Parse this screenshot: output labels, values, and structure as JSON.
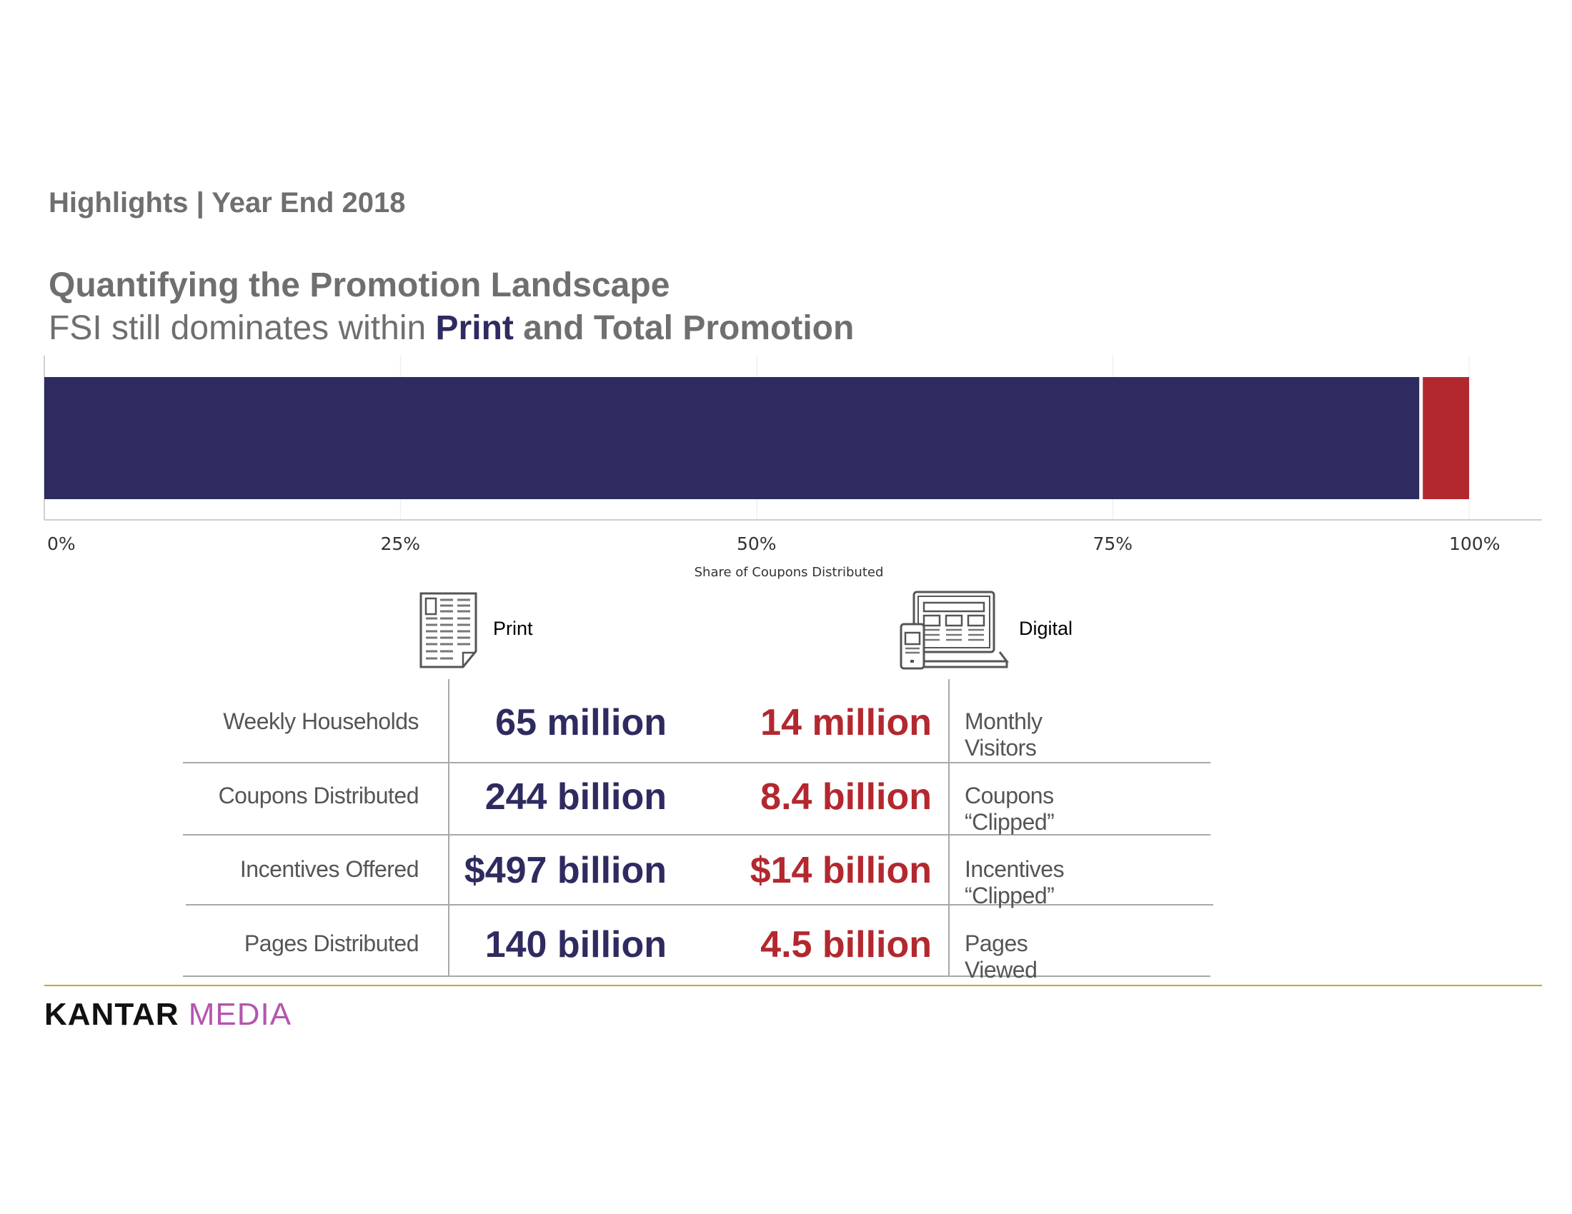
{
  "header": {
    "kicker": "Highlights | Year End 2018",
    "title": "Quantifying the Promotion Landscape",
    "subtitle_pre": "FSI still dominates within ",
    "subtitle_highlight": "Print",
    "subtitle_post": " and Total Promotion"
  },
  "chart_data": {
    "type": "bar",
    "orientation": "horizontal-stacked",
    "xlabel": "Share of Coupons Distributed",
    "xlim": [
      0,
      100
    ],
    "xticks": [
      "0%",
      "25%",
      "50%",
      "75%",
      "100%"
    ],
    "grid": true,
    "series": [
      {
        "category": "Print",
        "value": 96.6,
        "color": "#2e2b60"
      },
      {
        "category": "Digital",
        "value": 3.4,
        "color": "#b3282f"
      }
    ]
  },
  "legend": {
    "print": {
      "label": "Print",
      "icon": "newspaper-icon"
    },
    "digital": {
      "label": "Digital",
      "icon": "devices-icon"
    }
  },
  "table": {
    "rows": [
      {
        "print_label": "Weekly Households",
        "print_value": "65 million",
        "digital_value": "14 million",
        "digital_label": "Monthly Visitors"
      },
      {
        "print_label": "Coupons Distributed",
        "print_value": "244 billion",
        "digital_value": "8.4 billion",
        "digital_label": "Coupons “Clipped”"
      },
      {
        "print_label": "Incentives Offered",
        "print_value": "$497 billion",
        "digital_value": "$14 billion",
        "digital_label": "Incentives “Clipped”"
      },
      {
        "print_label": "Pages Distributed",
        "print_value": "140 billion",
        "digital_value": "4.5 billion",
        "digital_label": "Pages Viewed"
      }
    ]
  },
  "footer": {
    "logo_part1": "KANTAR",
    "logo_part2": "MEDIA"
  },
  "colors": {
    "print": "#2e2b60",
    "digital": "#b3282f",
    "accent_line": "#c9a820"
  }
}
